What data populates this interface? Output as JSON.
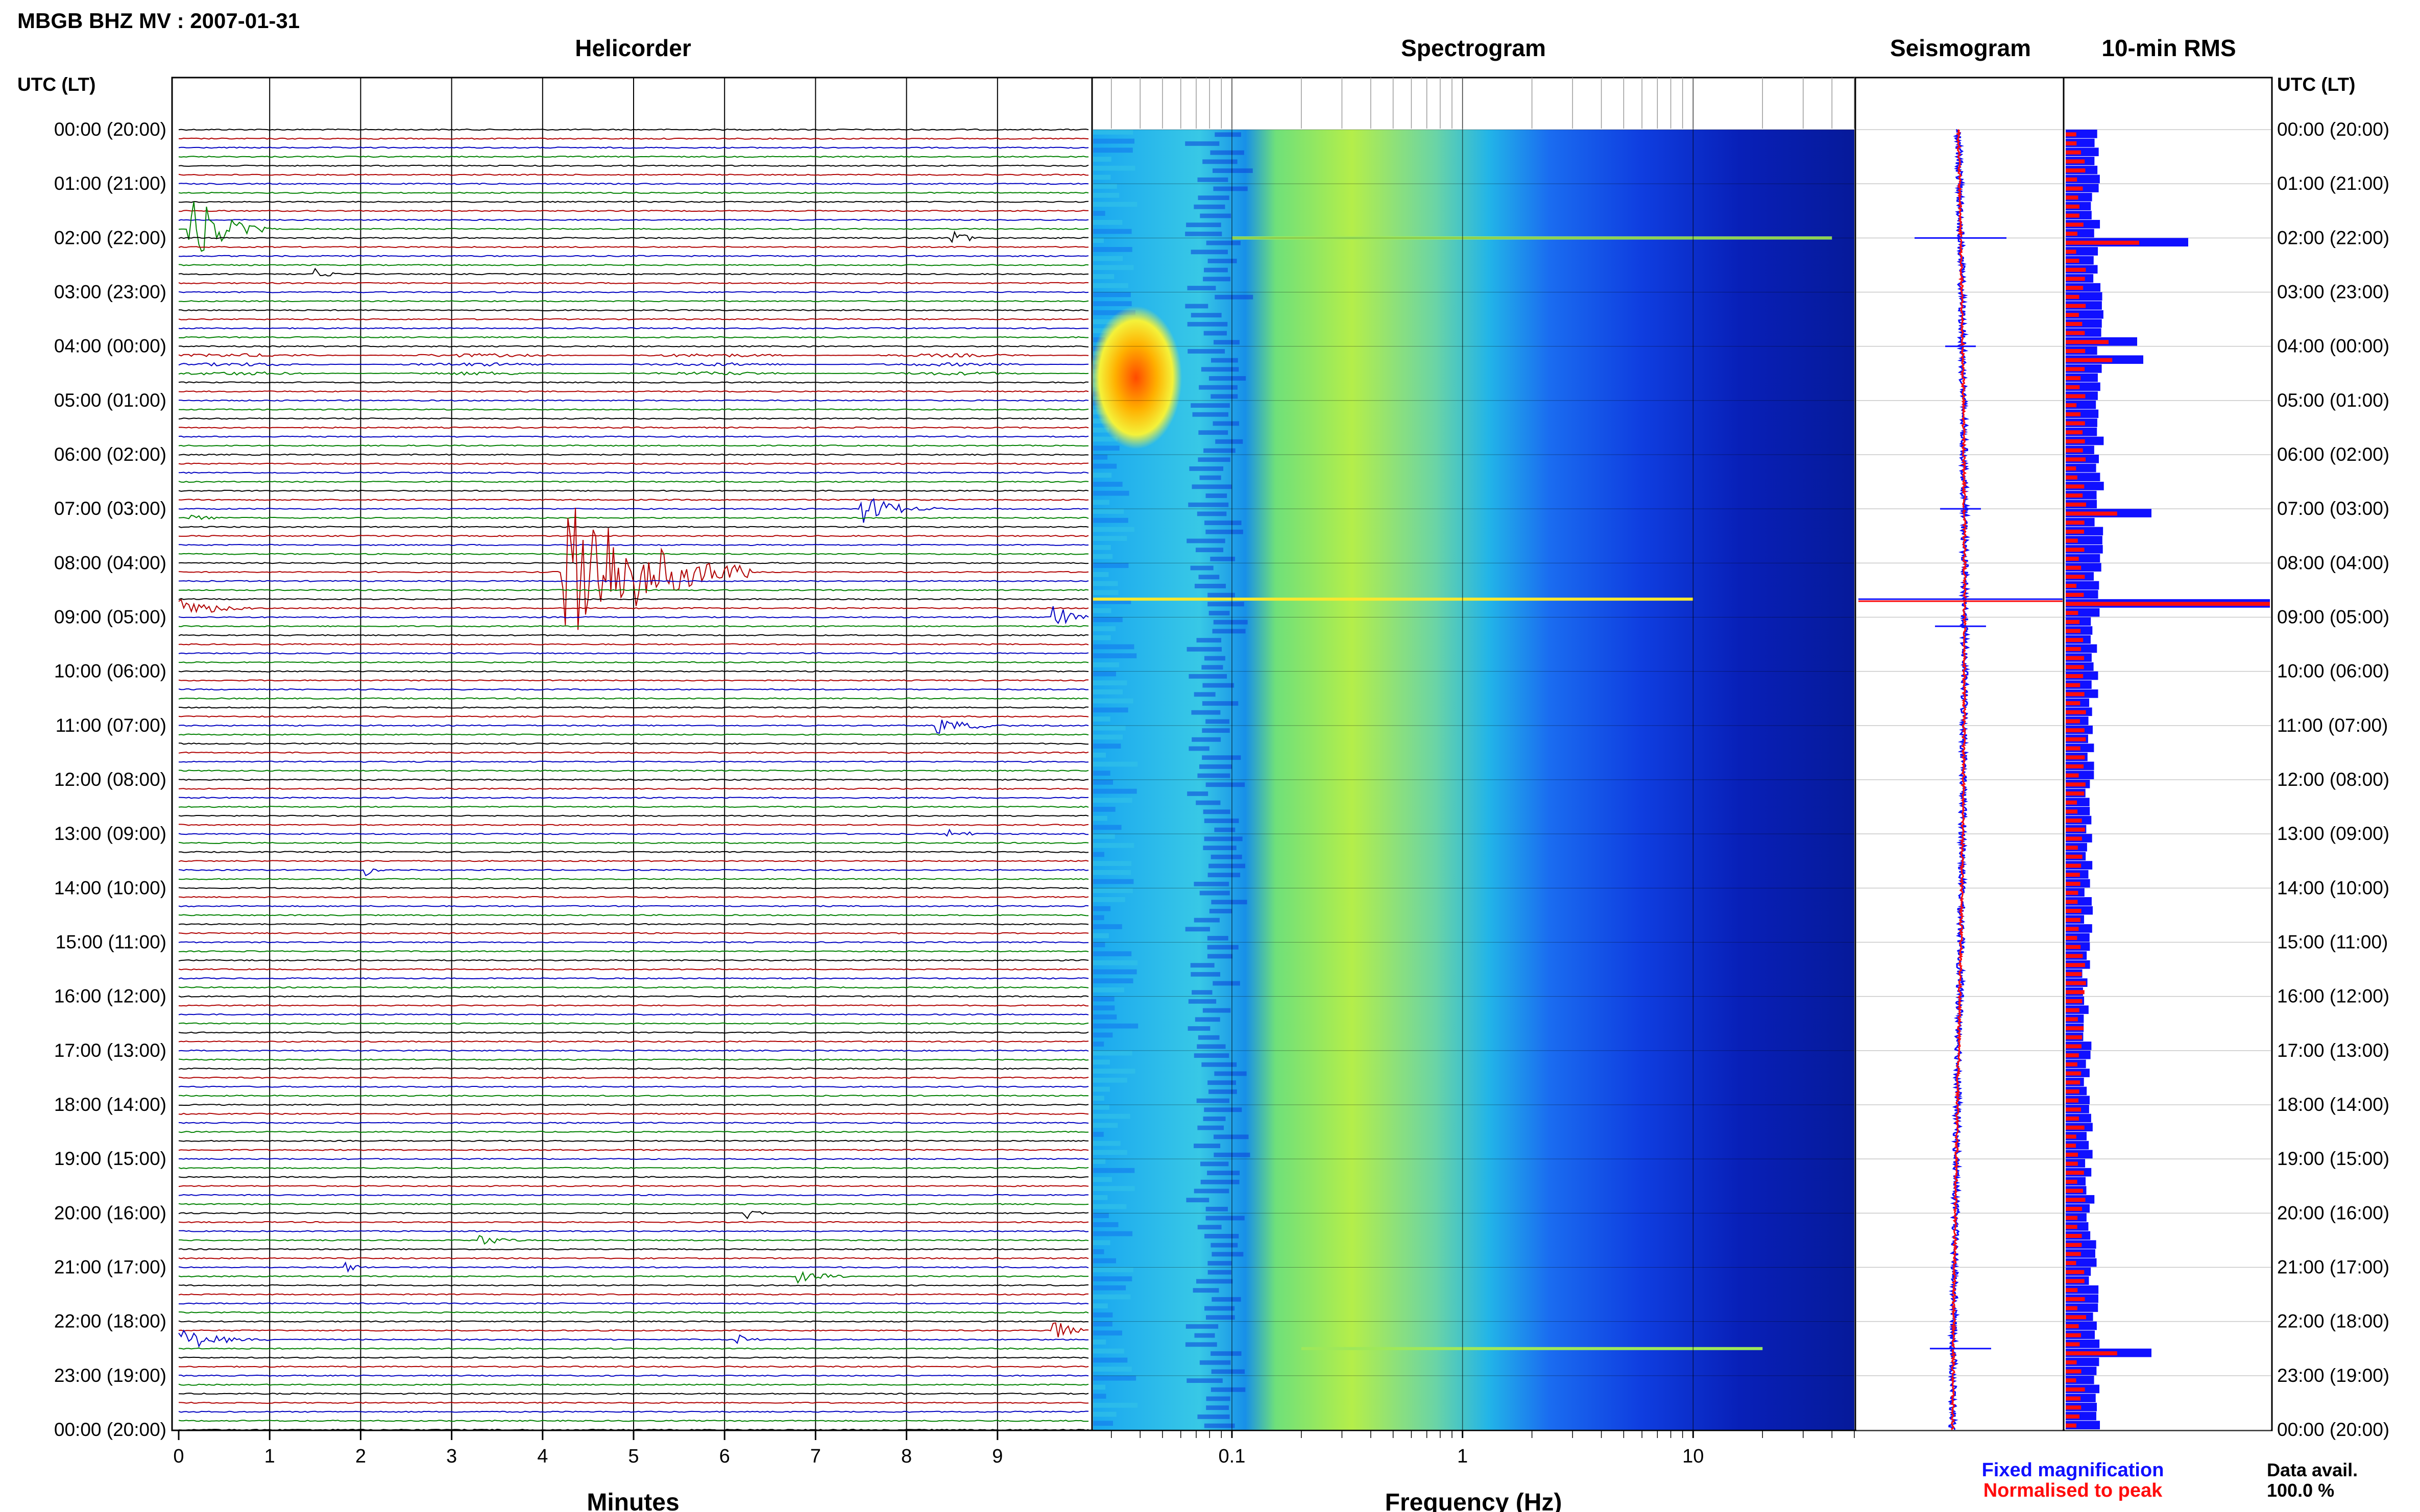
{
  "title": "MBGB BHZ MV : 2007-01-31",
  "panels": {
    "helicorder": "Helicorder",
    "spectrogram": "Spectrogram",
    "seismogram": "Seismogram",
    "rms": "10-min RMS"
  },
  "axis_header_left": "UTC (LT)",
  "axis_header_right": "UTC (LT)",
  "time_labels": [
    "00:00 (20:00)",
    "01:00 (21:00)",
    "02:00 (22:00)",
    "03:00 (23:00)",
    "04:00 (00:00)",
    "05:00 (01:00)",
    "06:00 (02:00)",
    "07:00 (03:00)",
    "08:00 (04:00)",
    "09:00 (05:00)",
    "10:00 (06:00)",
    "11:00 (07:00)",
    "12:00 (08:00)",
    "13:00 (09:00)",
    "14:00 (10:00)",
    "15:00 (11:00)",
    "16:00 (12:00)",
    "17:00 (13:00)",
    "18:00 (14:00)",
    "19:00 (15:00)",
    "20:00 (16:00)",
    "21:00 (17:00)",
    "22:00 (18:00)",
    "23:00 (19:00)",
    "00:00 (20:00)"
  ],
  "legend": {
    "fixed": "Fixed magnification",
    "normalised": "Normalised to peak",
    "data_avail_label": "Data avail.",
    "data_avail_value": "100.0 %"
  },
  "colors": {
    "trace_cycle": [
      "#000000",
      "#b00000",
      "#0000c0",
      "#008000"
    ],
    "fixed": "#1010ff",
    "normalised": "#ff0d0d",
    "gridline": "#c8c8c8"
  },
  "chart_data": [
    {
      "type": "heatmap",
      "panel": "helicorder",
      "description_x": "Minutes",
      "xlabel": "Minutes",
      "x_ticks": [
        "0",
        "1",
        "2",
        "3",
        "4",
        "5",
        "6",
        "7",
        "8",
        "9"
      ],
      "xlim": [
        0,
        10
      ],
      "ylim_utc_hours": [
        0,
        24
      ],
      "rows": 144,
      "row_minutes": 10,
      "events": [
        {
          "utc": "01:50",
          "start_min": 0.1,
          "end_min": 1.0,
          "amplitude": 1.6
        },
        {
          "utc": "02:00",
          "start_min": 8.5,
          "end_min": 9.0,
          "amplitude": 0.3
        },
        {
          "utc": "02:40",
          "start_min": 1.5,
          "end_min": 2.0,
          "amplitude": 0.25
        },
        {
          "utc": "07:00",
          "start_min": 7.5,
          "end_min": 8.4,
          "amplitude": 0.6
        },
        {
          "utc": "07:10",
          "start_min": 0.1,
          "end_min": 0.5,
          "amplitude": 0.3
        },
        {
          "utc": "08:10",
          "start_min": 4.2,
          "end_min": 6.3,
          "amplitude": 4.2
        },
        {
          "utc": "08:50",
          "start_min": 0.0,
          "end_min": 1.0,
          "amplitude": 0.4
        },
        {
          "utc": "09:00",
          "start_min": 9.6,
          "end_min": 10.0,
          "amplitude": 0.8
        },
        {
          "utc": "11:00",
          "start_min": 8.3,
          "end_min": 9.2,
          "amplitude": 0.4
        },
        {
          "utc": "13:00",
          "start_min": 8.4,
          "end_min": 8.9,
          "amplitude": 0.3
        },
        {
          "utc": "13:40",
          "start_min": 2.05,
          "end_min": 2.3,
          "amplitude": 0.4
        },
        {
          "utc": "20:00",
          "start_min": 6.2,
          "end_min": 6.6,
          "amplitude": 0.3
        },
        {
          "utc": "20:30",
          "start_min": 3.3,
          "end_min": 3.8,
          "amplitude": 0.3
        },
        {
          "utc": "21:00",
          "start_min": 1.8,
          "end_min": 2.2,
          "amplitude": 0.25
        },
        {
          "utc": "21:10",
          "start_min": 6.8,
          "end_min": 7.5,
          "amplitude": 0.3
        },
        {
          "utc": "22:20",
          "start_min": 0.0,
          "end_min": 1.0,
          "amplitude": 0.5
        },
        {
          "utc": "22:20",
          "start_min": 6.1,
          "end_min": 6.4,
          "amplitude": 0.5
        },
        {
          "utc": "22:10",
          "start_min": 9.6,
          "end_min": 10.0,
          "amplitude": 0.8
        }
      ]
    },
    {
      "type": "heatmap",
      "panel": "spectrogram",
      "xlabel": "Frequency (Hz)",
      "x_scale": "log",
      "x_ticks": [
        "0.1",
        "1",
        "10"
      ],
      "xlim_hz": [
        0.025,
        50
      ],
      "colormap": "jet",
      "note_features": [
        {
          "utc_start": "03:50",
          "utc_end": "05:30",
          "freq_range_hz": [
            0.025,
            0.08
          ],
          "level": "high"
        },
        {
          "utc": "08:40",
          "freq_range_hz": [
            0.025,
            10
          ],
          "level": "high"
        },
        {
          "utc": "02:00",
          "freq_range_hz": [
            0.1,
            40
          ],
          "level": "medium"
        },
        {
          "utc": "22:30",
          "freq_range_hz": [
            0.2,
            20
          ],
          "level": "medium"
        }
      ]
    },
    {
      "type": "line",
      "panel": "seismogram",
      "series": [
        {
          "name": "Fixed magnification",
          "color": "#1010ff"
        },
        {
          "name": "Normalised to peak",
          "color": "#ff0d0d"
        }
      ],
      "spikes_utc": [
        {
          "utc": "02:00",
          "amplitude": 0.45
        },
        {
          "utc": "04:00",
          "amplitude": 0.15
        },
        {
          "utc": "07:00",
          "amplitude": 0.2
        },
        {
          "utc": "08:40",
          "amplitude": 1.0
        },
        {
          "utc": "09:10",
          "amplitude": 0.25
        },
        {
          "utc": "22:30",
          "amplitude": 0.3
        }
      ]
    },
    {
      "type": "bar",
      "panel": "rms",
      "orientation": "horizontal",
      "bins_minutes": 10,
      "series": [
        {
          "name": "Fixed magnification",
          "color": "#1010ff"
        },
        {
          "name": "Normalised to peak",
          "color": "#ff0d0d"
        }
      ],
      "peaks_utc": [
        {
          "utc": "02:00",
          "fixed": 0.6
        },
        {
          "utc": "03:50",
          "fixed": 0.35
        },
        {
          "utc": "04:10",
          "fixed": 0.38
        },
        {
          "utc": "07:00",
          "fixed": 0.42
        },
        {
          "utc": "08:40",
          "fixed": 1.0
        },
        {
          "utc": "22:30",
          "fixed": 0.42
        }
      ]
    }
  ]
}
